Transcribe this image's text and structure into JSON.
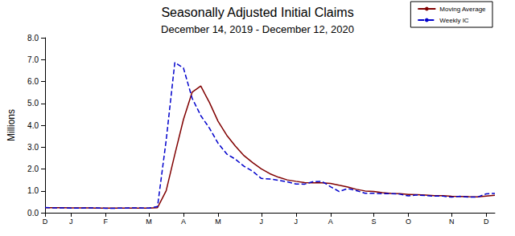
{
  "chart_data": {
    "type": "line",
    "title": "Seasonally Adjusted Initial Claims",
    "subtitle": "December 14, 2019 - December 12, 2020",
    "ylabel": "Millions",
    "categories": [
      "D",
      null,
      null,
      "J",
      null,
      null,
      null,
      "F",
      null,
      null,
      null,
      null,
      "M",
      null,
      null,
      null,
      "A",
      null,
      null,
      null,
      "M",
      null,
      null,
      null,
      null,
      "J",
      null,
      null,
      null,
      "J",
      null,
      null,
      null,
      "A",
      null,
      null,
      null,
      null,
      "S",
      null,
      null,
      null,
      "O",
      null,
      null,
      null,
      null,
      "N",
      null,
      null,
      null,
      "D",
      null
    ],
    "series": [
      {
        "name": "Moving Average",
        "color": "#800000",
        "line_style": "solid",
        "marker": "none",
        "values": [
          0.225,
          0.228,
          0.233,
          0.223,
          0.216,
          0.217,
          0.215,
          0.212,
          0.212,
          0.21,
          0.21,
          0.214,
          0.215,
          0.232,
          1.004,
          2.667,
          4.268,
          5.507,
          5.79,
          5.04,
          4.181,
          3.543,
          3.044,
          2.608,
          2.288,
          2.008,
          1.782,
          1.621,
          1.5,
          1.436,
          1.378,
          1.363,
          1.369,
          1.339,
          1.255,
          1.175,
          1.069,
          0.995,
          0.975,
          0.918,
          0.881,
          0.87,
          0.839,
          0.826,
          0.803,
          0.78,
          0.777,
          0.752,
          0.744,
          0.733,
          0.723,
          0.761,
          0.8
        ]
      },
      {
        "name": "Weekly IC",
        "color": "#0000cc",
        "line_style": "dashed",
        "marker": "none",
        "values": [
          0.234,
          0.222,
          0.224,
          0.212,
          0.207,
          0.223,
          0.216,
          0.203,
          0.205,
          0.214,
          0.219,
          0.217,
          0.211,
          0.282,
          3.307,
          6.867,
          6.615,
          5.237,
          4.442,
          3.867,
          3.176,
          2.687,
          2.446,
          2.123,
          1.897,
          1.566,
          1.54,
          1.482,
          1.413,
          1.31,
          1.307,
          1.422,
          1.435,
          1.191,
          0.971,
          1.104,
          1.011,
          0.893,
          0.893,
          0.866,
          0.873,
          0.849,
          0.767,
          0.813,
          0.782,
          0.758,
          0.757,
          0.711,
          0.748,
          0.716,
          0.716,
          0.862,
          0.885
        ]
      }
    ],
    "ylim": [
      0,
      8
    ],
    "yticks": [
      {
        "value": 0,
        "label": "0.0"
      },
      {
        "value": 1,
        "label": "1.0"
      },
      {
        "value": 2,
        "label": "2.0"
      },
      {
        "value": 3,
        "label": "3.0"
      },
      {
        "value": 4,
        "label": "4.0"
      },
      {
        "value": 5,
        "label": "5.0"
      },
      {
        "value": 6,
        "label": "6.0"
      },
      {
        "value": 7,
        "label": "7.0"
      },
      {
        "value": 8,
        "label": "8.0"
      }
    ],
    "grid": false,
    "legend": "upper right"
  }
}
